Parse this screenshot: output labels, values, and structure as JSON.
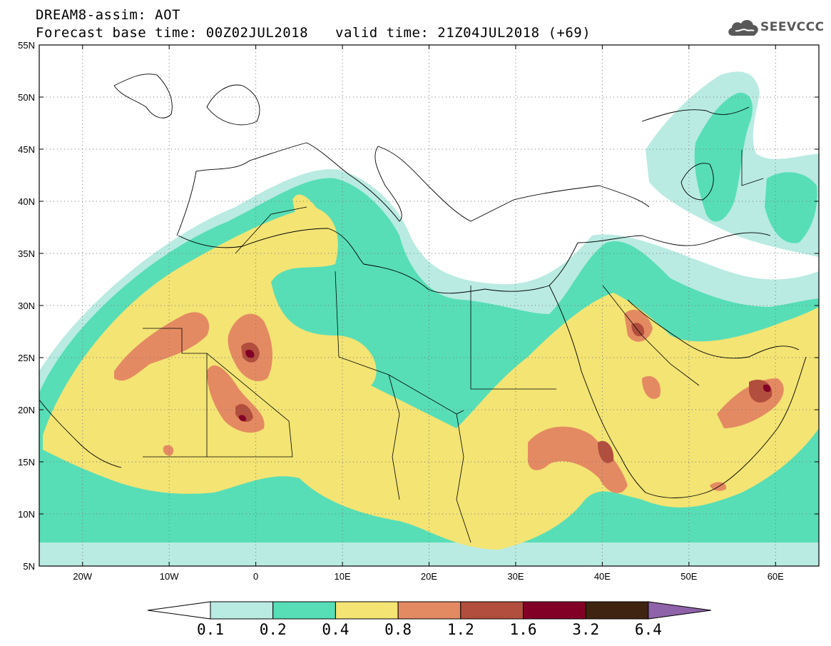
{
  "header": {
    "title": "DREAM8-assim: AOT",
    "base_time": "Forecast base time: 00Z02JUL2018",
    "valid_time": "valid time: 21Z04JUL2018 (+69)"
  },
  "logo": {
    "text": "SEEVCCC",
    "icon": "cloud-icon"
  },
  "axes": {
    "lat_labels": [
      "55N",
      "50N",
      "45N",
      "40N",
      "35N",
      "30N",
      "25N",
      "20N",
      "15N",
      "10N",
      "5N"
    ],
    "lon_labels": [
      "20W",
      "10W",
      "0",
      "10E",
      "20E",
      "30E",
      "40E",
      "50E",
      "60E"
    ],
    "lat_range": [
      5,
      55
    ],
    "lon_range": [
      -25,
      65
    ]
  },
  "colorbar": {
    "levels": [
      "0.1",
      "0.2",
      "0.4",
      "0.8",
      "1.2",
      "1.6",
      "3.2",
      "6.4"
    ],
    "colors": [
      "#b9ebe2",
      "#57deb6",
      "#f3e474",
      "#e48a62",
      "#b24e3d",
      "#820026",
      "#3f2411",
      "#8e63a9"
    ],
    "under_color": "#ffffff"
  },
  "palette": {
    "land_border": "#000000",
    "grid": "#777777"
  }
}
